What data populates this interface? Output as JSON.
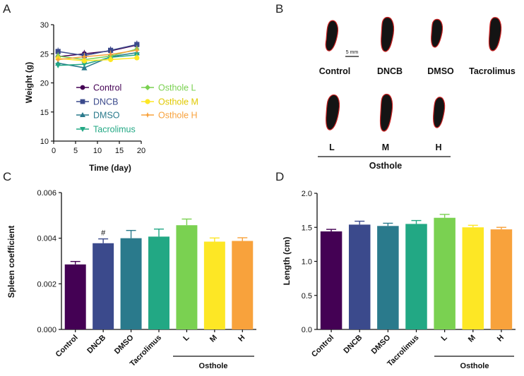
{
  "panels": {
    "a": "A",
    "b": "B",
    "c": "C",
    "d": "D"
  },
  "colors": {
    "Control": "#440154",
    "DNCB": "#3b4a8c",
    "DMSO": "#2a7a8c",
    "Tacrolimus": "#22a884",
    "Osthole L": "#7ad151",
    "Osthole M": "#fde725",
    "Osthole H": "#f8a23c",
    "axis": "#111111",
    "spleen": "#141414",
    "spleen_edge": "#cc2222"
  },
  "panel_b": {
    "scale_bar_label": "5 mm",
    "top_labels": [
      "Control",
      "DNCB",
      "DMSO",
      "Tacrolimus"
    ],
    "bottom_labels": [
      "L",
      "M",
      "H"
    ],
    "group_label": "Osthole"
  },
  "chart_data": [
    {
      "panel": "A",
      "type": "line",
      "xlabel": "Time (day)",
      "ylabel": "Weight (g)",
      "xlim": [
        0,
        20
      ],
      "ylim": [
        10,
        30
      ],
      "xticks": [
        "0",
        "5",
        "10",
        "15",
        "20"
      ],
      "yticks": [
        "10",
        "15",
        "20",
        "25",
        "30"
      ],
      "x": [
        1,
        7,
        13,
        19
      ],
      "series": [
        {
          "name": "Control",
          "marker": "circle",
          "values": [
            24.5,
            25.0,
            25.5,
            26.5
          ]
        },
        {
          "name": "DNCB",
          "marker": "square",
          "values": [
            25.4,
            24.7,
            25.6,
            26.6
          ]
        },
        {
          "name": "DMSO",
          "marker": "triangle-up",
          "values": [
            23.4,
            22.6,
            24.5,
            25.2
          ]
        },
        {
          "name": "Tacrolimus",
          "marker": "triangle-down",
          "values": [
            23.0,
            23.2,
            24.4,
            24.8
          ]
        },
        {
          "name": "Osthole L",
          "marker": "diamond",
          "values": [
            24.6,
            24.0,
            24.6,
            25.8
          ]
        },
        {
          "name": "Osthole M",
          "marker": "hexagon",
          "values": [
            24.2,
            23.8,
            24.0,
            24.3
          ]
        },
        {
          "name": "Osthole H",
          "marker": "star",
          "values": [
            24.0,
            24.5,
            24.9,
            25.6
          ]
        }
      ],
      "legend_left": [
        "Control",
        "DNCB",
        "DMSO",
        "Tacrolimus"
      ],
      "legend_right": [
        "Osthole L",
        "Osthole M",
        "Osthole H"
      ]
    },
    {
      "panel": "C",
      "type": "bar",
      "ylabel": "Spleen coefficient",
      "ylim": [
        0,
        0.006
      ],
      "yticks": [
        "0.000",
        "0.002",
        "0.004",
        "0.006"
      ],
      "categories": [
        "Control",
        "DNCB",
        "DMSO",
        "Tacrolimus",
        "L",
        "M",
        "H"
      ],
      "values": [
        0.00285,
        0.00378,
        0.004,
        0.00407,
        0.00457,
        0.00385,
        0.00388
      ],
      "errors": [
        0.00013,
        0.00019,
        0.00034,
        0.00033,
        0.00027,
        0.00016,
        0.00014
      ],
      "annotations": [
        {
          "category": "DNCB",
          "text": "#"
        }
      ],
      "group_label": "Osthole"
    },
    {
      "panel": "D",
      "type": "bar",
      "ylabel": "Length (cm)",
      "ylim": [
        0,
        2.0
      ],
      "yticks": [
        "0.0",
        "0.5",
        "1.0",
        "1.5",
        "2.0"
      ],
      "categories": [
        "Control",
        "DNCB",
        "DMSO",
        "Tacrolimus",
        "L",
        "M",
        "H"
      ],
      "values": [
        1.44,
        1.54,
        1.52,
        1.55,
        1.64,
        1.5,
        1.47
      ],
      "errors": [
        0.03,
        0.05,
        0.04,
        0.05,
        0.05,
        0.03,
        0.03
      ],
      "group_label": "Osthole"
    }
  ]
}
